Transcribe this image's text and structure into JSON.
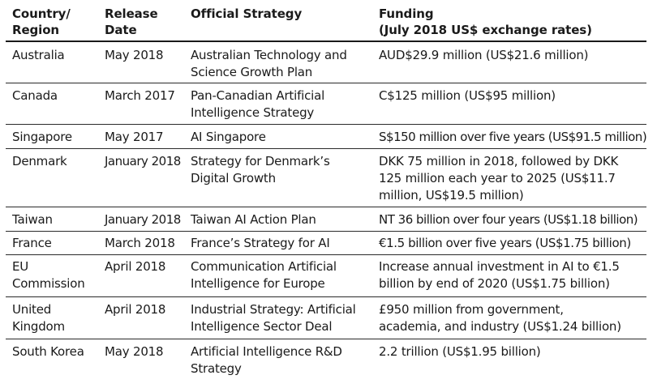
{
  "headers": {
    "country": "Country/\nRegion",
    "release": "Release\nDate",
    "strategy": "Official Strategy",
    "funding": "Funding\n(July 2018 US$ exchange rates)"
  },
  "rows": [
    {
      "country": "Australia",
      "release": "May 2018",
      "strategy": "Australian Technology and\nScience Growth Plan",
      "funding": "AUD$29.9 million (US$21.6 million)"
    },
    {
      "country": "Canada",
      "release": "March 2017",
      "strategy": "Pan-Canadian Artificial\nIntelligence Strategy",
      "funding": "C$125 million (US$95 million)"
    },
    {
      "country": "Singapore",
      "release": "May 2017",
      "strategy": "AI Singapore",
      "funding": "S$150 million over five years (US$91.5 million)"
    },
    {
      "country": "Denmark",
      "release": "January 2018",
      "strategy": "Strategy for Denmark’s\nDigital Growth",
      "funding": "DKK 75 million in 2018, followed by DKK\n125 million each year to 2025  (US$11.7\nmillion, US$19.5 million)"
    },
    {
      "country": "Taiwan",
      "release": "January 2018",
      "strategy": "Taiwan AI Action Plan",
      "funding": "NT 36 billion over four years (US$1.18 billion)"
    },
    {
      "country": "France",
      "release": "March 2018",
      "strategy": "France’s Strategy for AI",
      "funding": "€1.5 billion over five years (US$1.75 billion)"
    },
    {
      "country": "EU\nCommission",
      "release": "April 2018",
      "strategy": "Communication Artificial\nIntelligence for Europe",
      "funding": "Increase annual investment in AI to €1.5\nbillion by end of 2020 (US$1.75 billion)"
    },
    {
      "country": "United\nKingdom",
      "release": "April 2018",
      "strategy": "Industrial Strategy: Artificial\nIntelligence Sector Deal",
      "funding": "£950 million from government,\nacademia, and industry (US$1.24 billion)"
    },
    {
      "country": "South Korea",
      "release": "May 2018",
      "strategy": "Artificial Intelligence R&D\nStrategy",
      "funding": "2.2 trillion (US$1.95 billion)"
    }
  ]
}
